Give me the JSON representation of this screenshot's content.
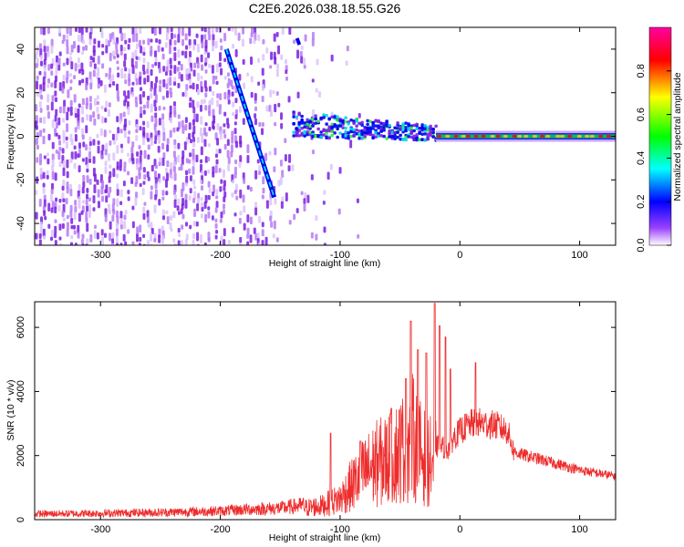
{
  "title": "C2E6.2026.038.18.55.G26",
  "chart_data": [
    {
      "type": "heatmap",
      "xlabel": "Height of straight line (km)",
      "ylabel": "Frequency (Hz)",
      "xlim": [
        -355,
        130
      ],
      "ylim": [
        -50,
        50
      ],
      "xticks": [
        -300,
        -200,
        -100,
        0,
        100
      ],
      "yticks": [
        -40,
        -20,
        0,
        20,
        40
      ],
      "grid": false,
      "colorbar": {
        "label": "Normalized spectral amplitude",
        "range": [
          0.0,
          1.0
        ],
        "ticks": [
          0.0,
          0.2,
          0.4,
          0.6,
          0.8
        ],
        "colormap": [
          "#ffffff",
          "#8a2be2",
          "#0000ff",
          "#00ffff",
          "#00ff00",
          "#ffff00",
          "#ff0000",
          "#ff00a0"
        ]
      },
      "features": {
        "noise_region_x": [
          -355,
          -130
        ],
        "diagonal_streak": {
          "x": [
            -195,
            -155
          ],
          "y": [
            40,
            -28
          ]
        },
        "upper_short_streak": {
          "x": [
            -136,
            -134
          ],
          "y": [
            45,
            42
          ]
        },
        "scatter_band_x": [
          -140,
          -20
        ],
        "steady_line_x": [
          -20,
          130
        ],
        "steady_line_freq": 0
      }
    },
    {
      "type": "line",
      "xlabel": "Height of straight line (km)",
      "ylabel": "SNR (10 * v/v)",
      "xlim": [
        -355,
        130
      ],
      "ylim": [
        0,
        6800
      ],
      "xticks": [
        -300,
        -200,
        -100,
        0,
        100
      ],
      "yticks": [
        0,
        2000,
        4000,
        6000
      ],
      "grid": false,
      "series": [
        {
          "color": "#ee2c2c",
          "envelope_x": [
            -355,
            -300,
            -250,
            -200,
            -180,
            -150,
            -130,
            -115,
            -100,
            -90,
            -80,
            -70,
            -60,
            -50,
            -45,
            -40,
            -35,
            -30,
            -25,
            -20,
            -15,
            -10,
            -5,
            0,
            5,
            10,
            15,
            20,
            30,
            40,
            43,
            46,
            50,
            60,
            70,
            80,
            90,
            100,
            110,
            120,
            130
          ],
          "envelope_y": [
            200,
            220,
            250,
            300,
            350,
            400,
            500,
            600,
            900,
            1500,
            2000,
            2400,
            2600,
            3000,
            3200,
            3600,
            3000,
            2700,
            2500,
            2400,
            2400,
            2300,
            2700,
            2900,
            3050,
            3150,
            3200,
            3150,
            3100,
            2900,
            2500,
            2100,
            2050,
            1950,
            1850,
            1750,
            1650,
            1550,
            1480,
            1420,
            1350
          ],
          "peaks": [
            {
              "x": -108,
              "y": 2700
            },
            {
              "x": -83,
              "y": 2450
            },
            {
              "x": -58,
              "y": 3300
            },
            {
              "x": -45,
              "y": 4400
            },
            {
              "x": -41,
              "y": 6200
            },
            {
              "x": -35,
              "y": 5300
            },
            {
              "x": -28,
              "y": 5200
            },
            {
              "x": -21,
              "y": 6750
            },
            {
              "x": -17,
              "y": 6050
            },
            {
              "x": -12,
              "y": 5700
            },
            {
              "x": -8,
              "y": 4700
            },
            {
              "x": 13,
              "y": 4900
            }
          ]
        }
      ]
    }
  ]
}
